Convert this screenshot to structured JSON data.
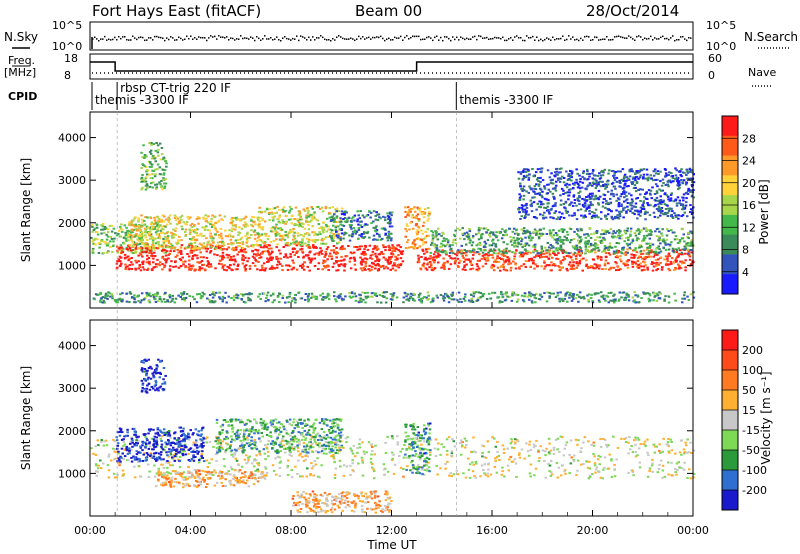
{
  "header": {
    "station": "Fort Hays East (fitACF)",
    "beam": "Beam 00",
    "date": "28/Oct/2014"
  },
  "strips": {
    "nsky_label": "N.Sky",
    "nsearch_label": "N.Search",
    "freq_label_1": "Freq.",
    "freq_label_2": "[MHz]",
    "nave_label": "Nave",
    "cpid_label": "CPID",
    "noise_ticks": [
      "10^5",
      "10^0"
    ],
    "freq_ticks_left": [
      "18",
      "8"
    ],
    "freq_ticks_right": [
      "60",
      "0"
    ],
    "cpid_segments": [
      {
        "label": "themis -3300 IF",
        "start_h": 0.0
      },
      {
        "label": "rbsp CT-trig 220 IF",
        "start_h": 1.0
      },
      {
        "label": "themis -3300 IF",
        "start_h": 14.5
      }
    ],
    "freq_trace": [
      {
        "start_h": 0.0,
        "end_h": 1.0,
        "level": "high"
      },
      {
        "start_h": 1.0,
        "end_h": 13.0,
        "level": "low"
      },
      {
        "start_h": 13.0,
        "end_h": 24.0,
        "level": "high"
      }
    ]
  },
  "chart_data": [
    {
      "type": "heatmap",
      "name": "power",
      "ylabel": "Slant Range [km]",
      "ylim": [
        0,
        4600
      ],
      "yticks": [
        "1000",
        "2000",
        "3000",
        "4000"
      ],
      "colorbar_label": "Power [dB]",
      "colorbar_ticks": [
        "4",
        "8",
        "12",
        "16",
        "20",
        "24",
        "28"
      ],
      "colorbar_colors": [
        "#1a1aff",
        "#3355bb",
        "#3a8a5a",
        "#44b84a",
        "#a8d64a",
        "#ffd23a",
        "#ff9a2a",
        "#ff5a1a",
        "#ff1a1a"
      ],
      "scatter_bands": [
        {
          "x": [
            0.0,
            3.0
          ],
          "y": [
            1300,
            2000
          ],
          "level": 0.45
        },
        {
          "x": [
            1.0,
            12.5
          ],
          "y": [
            900,
            1500
          ],
          "level": 0.95
        },
        {
          "x": [
            1.5,
            6.5
          ],
          "y": [
            1400,
            2200
          ],
          "level": 0.6
        },
        {
          "x": [
            6.5,
            10.0
          ],
          "y": [
            1500,
            2400
          ],
          "level": 0.55
        },
        {
          "x": [
            9.5,
            12.0
          ],
          "y": [
            1600,
            2300
          ],
          "level": 0.25
        },
        {
          "x": [
            12.5,
            13.5
          ],
          "y": [
            1400,
            2400
          ],
          "level": 0.7
        },
        {
          "x": [
            13.0,
            24.0
          ],
          "y": [
            900,
            1400
          ],
          "level": 0.9
        },
        {
          "x": [
            13.5,
            24.0
          ],
          "y": [
            1300,
            1900
          ],
          "level": 0.35
        },
        {
          "x": [
            2.0,
            3.0
          ],
          "y": [
            2800,
            3900
          ],
          "level": 0.4
        },
        {
          "x": [
            17.0,
            24.0
          ],
          "y": [
            2100,
            3300
          ],
          "level": 0.15
        },
        {
          "x": [
            0.0,
            24.0
          ],
          "y": [
            150,
            400
          ],
          "level": 0.3
        }
      ]
    },
    {
      "type": "heatmap",
      "name": "velocity",
      "ylabel": "Slant Range [km]",
      "ylim": [
        0,
        4600
      ],
      "yticks": [
        "1000",
        "2000",
        "3000",
        "4000"
      ],
      "colorbar_label": "Velocity [m s⁻¹]",
      "colorbar_ticks": [
        "200",
        "100",
        "50",
        "15",
        "-15",
        "-50",
        "-100",
        "-200"
      ],
      "colorbar_colors": [
        "#1a1acc",
        "#2f6fd0",
        "#2a9a3a",
        "#7ed957",
        "#c8c8c8",
        "#ffb030",
        "#ff7a20",
        "#ff4a1a",
        "#ff1a1a"
      ],
      "scatter_bands": [
        {
          "x": [
            0.0,
            24.0
          ],
          "y": [
            900,
            1900
          ],
          "level": 0.5
        },
        {
          "x": [
            1.0,
            4.5
          ],
          "y": [
            1300,
            2100
          ],
          "level": 0.05
        },
        {
          "x": [
            5.0,
            10.0
          ],
          "y": [
            1500,
            2300
          ],
          "level": 0.3
        },
        {
          "x": [
            2.5,
            7.0
          ],
          "y": [
            700,
            1100
          ],
          "level": 0.62
        },
        {
          "x": [
            12.5,
            13.5
          ],
          "y": [
            1000,
            2200
          ],
          "level": 0.28
        },
        {
          "x": [
            8.0,
            12.0
          ],
          "y": [
            100,
            600
          ],
          "level": 0.62
        },
        {
          "x": [
            2.0,
            3.0
          ],
          "y": [
            2900,
            3700
          ],
          "level": 0.05
        }
      ]
    }
  ],
  "xaxis": {
    "label": "Time UT",
    "ticks": [
      "00:00",
      "04:00",
      "08:00",
      "12:00",
      "16:00",
      "20:00",
      "00:00"
    ]
  }
}
